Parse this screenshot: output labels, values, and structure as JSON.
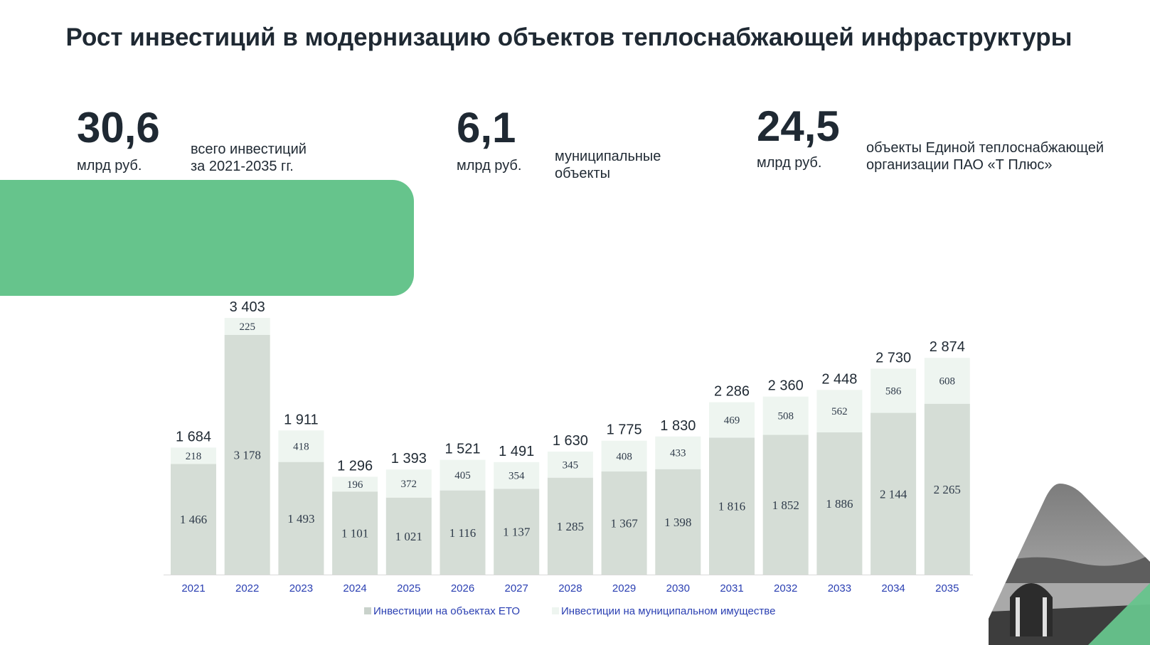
{
  "title": "Рост инвестиций в модернизацию объектов теплоснабжающей инфраструктуры",
  "stats": [
    {
      "value": "30,6",
      "unit": "млрд руб.",
      "desc_line1": "всего инвестиций",
      "desc_line2": "за 2021-2035 гг."
    },
    {
      "value": "6,1",
      "unit": "млрд руб.",
      "desc_line1": "муниципальные",
      "desc_line2": "объекты"
    },
    {
      "value": "24,5",
      "unit": "млрд руб.",
      "desc_line1": "объекты Единой теплоснабжающей",
      "desc_line2": "организации ПАО «Т Плюс»"
    }
  ],
  "colors": {
    "accent_green": "#66c48c",
    "eto_bar": "#d5ddd6",
    "municipal_bar": "#eef5f0",
    "axis_label": "#2a3fb2"
  },
  "chart_data": {
    "type": "bar",
    "stacked": true,
    "categories": [
      "2021",
      "2022",
      "2023",
      "2024",
      "2025",
      "2026",
      "2027",
      "2028",
      "2029",
      "2030",
      "2031",
      "2032",
      "2033",
      "2034",
      "2035"
    ],
    "series": [
      {
        "name": "Инвестиции на объектах ЕТО",
        "values": [
          1466,
          3178,
          1493,
          1101,
          1021,
          1116,
          1137,
          1285,
          1367,
          1398,
          1816,
          1852,
          1886,
          2144,
          2265
        ],
        "labels": [
          "1 466",
          "3 178",
          "1 493",
          "1 101",
          "1 021",
          "1 116",
          "1 137",
          "1 285",
          "1 367",
          "1 398",
          "1 816",
          "1 852",
          "1 886",
          "2 144",
          "2 265"
        ]
      },
      {
        "name": "Инвестиции на муниципальном имуществе",
        "values": [
          218,
          225,
          418,
          196,
          372,
          405,
          354,
          345,
          408,
          433,
          469,
          508,
          562,
          586,
          608
        ],
        "labels": [
          "218",
          "225",
          "418",
          "196",
          "372",
          "405",
          "354",
          "345",
          "408",
          "433",
          "469",
          "508",
          "562",
          "586",
          "608"
        ]
      }
    ],
    "totals": [
      1684,
      3403,
      1911,
      1296,
      1393,
      1521,
      1491,
      1630,
      1775,
      1830,
      2286,
      2360,
      2448,
      2730,
      2874
    ],
    "total_labels": [
      "1 684",
      "3 403",
      "1 911",
      "1 296",
      "1 393",
      "1 521",
      "1 491",
      "1 630",
      "1 775",
      "1 830",
      "2 286",
      "2 360",
      "2 448",
      "2 730",
      "2 874"
    ],
    "ylim": [
      0,
      3403
    ],
    "grid": false,
    "legend_position": "bottom"
  }
}
